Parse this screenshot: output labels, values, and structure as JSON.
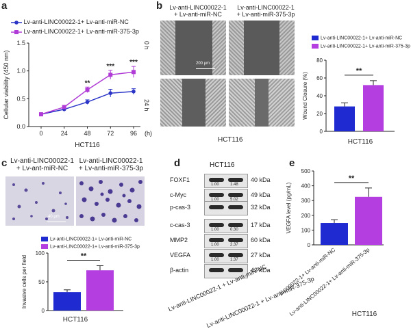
{
  "panels": {
    "a": {
      "label": "a",
      "chart_data": {
        "type": "line",
        "title": "",
        "xlabel": "HCT116",
        "ylabel": "Cellular viability (450 nm)",
        "x": [
          0,
          24,
          48,
          72,
          96
        ],
        "x_unit": "(h)",
        "ylim": [
          0,
          1.5
        ],
        "yticks": [
          "0.0",
          "0.5",
          "1.0",
          "1.5"
        ],
        "series": [
          {
            "name": "Lv-anti-LINC00022-1+ Lv-anti-miR-NC",
            "color": "#2a35c8",
            "values": [
              0.22,
              0.31,
              0.44,
              0.6,
              0.63
            ],
            "errors": [
              0.02,
              0.03,
              0.04,
              0.07,
              0.05
            ]
          },
          {
            "name": "Lv-anti-LINC00022-1+ Lv-anti-miR-375-3p",
            "color": "#b03bd6",
            "values": [
              0.22,
              0.35,
              0.66,
              0.93,
              0.98
            ],
            "errors": [
              0.02,
              0.03,
              0.05,
              0.08,
              0.1
            ]
          }
        ],
        "annotations": [
          "**",
          "***",
          "***"
        ]
      }
    },
    "b": {
      "label": "b",
      "col1": [
        "Lv-anti-LINC00022-1",
        "+ Lv-anti-miR-NC"
      ],
      "col2": [
        "Lv-anti-LINC00022-1",
        "+ Lv-anti-miR-375-3p"
      ],
      "row1": "0 h",
      "row2": "24 h",
      "scale": "200 μm",
      "xlabel": "HCT116",
      "chart_data": {
        "type": "bar",
        "legend": [
          "Lv-anti-LINC00022-1+ Lv-anti-miR-NC",
          "Lv-anti-LINC00022-1+ Lv-anti-miR-375-3p"
        ],
        "categories": [
          "Lv-anti-miR-NC",
          "Lv-anti-miR-375-3p"
        ],
        "values": [
          28,
          52
        ],
        "errors": [
          4,
          5
        ],
        "colors": [
          "#1f2bd0",
          "#b43ee0"
        ],
        "ylabel": "Wound Closure (%)",
        "xlabel": "HCT116",
        "ylim": [
          0,
          80
        ],
        "yticks": [
          "0",
          "20",
          "40",
          "60",
          "80"
        ],
        "significance": "**"
      }
    },
    "c": {
      "label": "c",
      "col1": [
        "Lv-anti-LINC00022-1",
        "+ Lv-ant-miR-NC"
      ],
      "col2": [
        "Lv-anti-LINC00022-1",
        "+ Lv-anti-miR-375-3p"
      ],
      "scale": "40 μm",
      "chart_data": {
        "type": "bar",
        "legend": [
          "Lv-anti-LINC00022-1+ Lv-anti-miR-NC",
          "Lv-anti-LINC00022-1+ Lv-anti-miR-375-3p"
        ],
        "categories": [
          "Lv-anti-miR-NC",
          "Lv-anti-miR-375-3p"
        ],
        "values": [
          32,
          70
        ],
        "errors": [
          4,
          8
        ],
        "colors": [
          "#1f2bd0",
          "#b43ee0"
        ],
        "ylabel": "Invasive cells per field",
        "xlabel": "HCT116",
        "ylim": [
          0,
          100
        ],
        "yticks": [
          "0",
          "50",
          "100"
        ],
        "significance": "**"
      }
    },
    "d": {
      "label": "d",
      "title": "HCT116",
      "rows": [
        {
          "name": "FOXF1",
          "kda": "40 kDa",
          "v1": "1.00",
          "v2": "1.48"
        },
        {
          "name": "c-Myc",
          "kda": "49 kDa",
          "v1": "1.00",
          "v2": "5.02"
        },
        {
          "name": "p-cas-3",
          "kda": "32 kDa",
          "v1": "",
          "v2": ""
        },
        {
          "name": "c-cas-3",
          "kda": "17 kDa",
          "v1": "1.00",
          "v2": "0.30"
        },
        {
          "name": "MMP2",
          "kda": "60 kDa",
          "v1": "1.00",
          "v2": "2.37"
        },
        {
          "name": "VEGFA",
          "kda": "27 kDa",
          "v1": "1.00",
          "v2": "1.37"
        },
        {
          "name": "β-actin",
          "kda": "42 kDa",
          "v1": "",
          "v2": ""
        }
      ],
      "xlabels": [
        "Lv-anti-LINC00022-1 + Lv-anti-miR-NC",
        "Lv-anti-LINC00022-1 + Lv-anti-miR-375-3p"
      ]
    },
    "e": {
      "label": "e",
      "chart_data": {
        "type": "bar",
        "categories": [
          "Lv-anti-LINC00022-1+ Lv-anti-miR-NC",
          "Lv-anti-LINC00022-1+ Lv-anti-miR-375-3p"
        ],
        "values": [
          148,
          325
        ],
        "errors": [
          22,
          60
        ],
        "colors": [
          "#1f2bd0",
          "#b43ee0"
        ],
        "ylabel": "VEGFA level (pg/mL)",
        "xlabel": "HCT116",
        "ylim": [
          0,
          500
        ],
        "yticks": [
          "0",
          "100",
          "200",
          "300",
          "400",
          "500"
        ],
        "significance": "**"
      }
    }
  }
}
